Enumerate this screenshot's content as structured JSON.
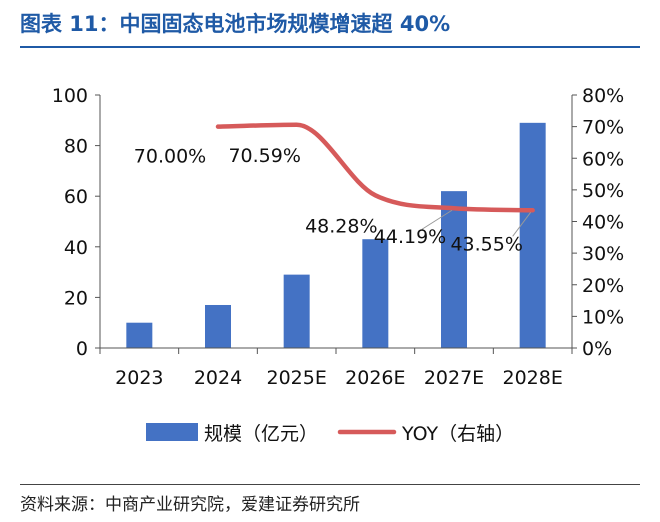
{
  "header": {
    "title": "图表 11：中国固态电池市场规模增速超 40%"
  },
  "footer": {
    "source": "资料来源：中商产业研究院，爱建证券研究所"
  },
  "chart_data": {
    "type": "bar+line",
    "categories": [
      "2023",
      "2024",
      "2025E",
      "2026E",
      "2027E",
      "2028E"
    ],
    "series": [
      {
        "name": "规模（亿元）",
        "type": "bar",
        "axis": "left",
        "color": "#4472c4",
        "values": [
          10,
          17,
          29,
          43,
          62,
          89
        ]
      },
      {
        "name": "YOY（右轴）",
        "type": "line",
        "axis": "right",
        "color": "#d65a5a",
        "smooth": true,
        "values": [
          null,
          70.0,
          70.59,
          48.28,
          44.19,
          43.55
        ],
        "labels": [
          "",
          "70.00%",
          "70.59%",
          "48.28%",
          "44.19%",
          "43.55%"
        ]
      }
    ],
    "left_axis": {
      "min": 0,
      "max": 100,
      "step": 20,
      "ticks": [
        "0",
        "20",
        "40",
        "60",
        "80",
        "100"
      ]
    },
    "right_axis": {
      "min": 0,
      "max": 80,
      "step": 10,
      "ticks": [
        "0%",
        "10%",
        "20%",
        "30%",
        "40%",
        "50%",
        "60%",
        "70%",
        "80%"
      ]
    },
    "grid": false,
    "legend": "bottom"
  }
}
